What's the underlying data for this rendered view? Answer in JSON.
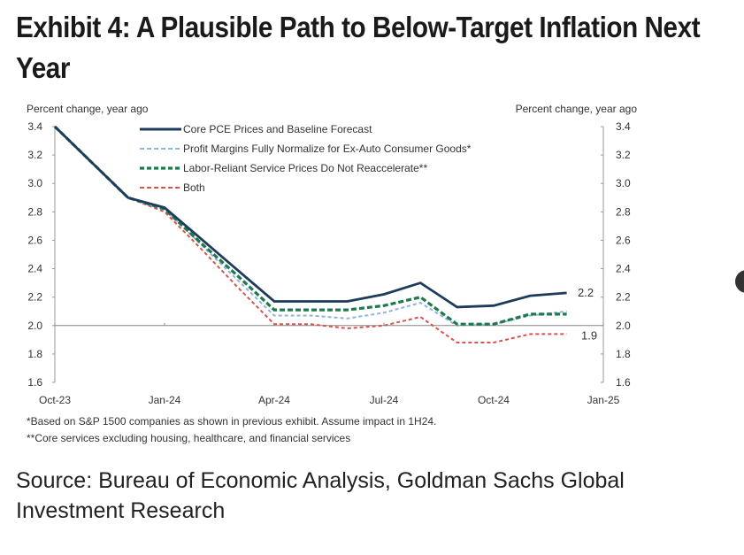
{
  "title": "Exhibit 4: A Plausible Path to Below-Target Inflation Next Year",
  "source": "Source: Bureau of Economic Analysis, Goldman Sachs Global Investment Research",
  "chart_data": {
    "type": "line",
    "title": "",
    "ylabel_left": "Percent change, year ago",
    "ylabel_right": "Percent change, year ago",
    "ylim": [
      1.6,
      3.4
    ],
    "yticks": [
      "3.4",
      "3.2",
      "3.0",
      "2.8",
      "2.6",
      "2.4",
      "2.2",
      "2.0",
      "1.8",
      "1.6"
    ],
    "xticks": [
      "Oct-23",
      "Jan-24",
      "Apr-24",
      "Jul-24",
      "Oct-24",
      "Jan-25"
    ],
    "x": [
      "Oct-23",
      "Nov-23",
      "Dec-23",
      "Jan-24",
      "Feb-24",
      "Mar-24",
      "Apr-24",
      "May-24",
      "Jun-24",
      "Jul-24",
      "Aug-24",
      "Sep-24",
      "Oct-24",
      "Nov-24",
      "Dec-24"
    ],
    "series": [
      {
        "name": "Core PCE Prices and Baseline Forecast",
        "color": "#1f3b5c",
        "style": "solid",
        "values": [
          3.4,
          3.15,
          2.9,
          2.83,
          2.61,
          2.39,
          2.17,
          2.17,
          2.17,
          2.22,
          2.3,
          2.13,
          2.14,
          2.21,
          2.23
        ]
      },
      {
        "name": "Profit Margins Fully Normalize for Ex-Auto Consumer Goods*",
        "color": "#8fb3dd",
        "style": "dashed",
        "values": [
          3.4,
          3.15,
          2.9,
          2.82,
          2.57,
          2.32,
          2.07,
          2.07,
          2.05,
          2.09,
          2.16,
          2.0,
          2.01,
          2.07,
          2.1
        ]
      },
      {
        "name": "Labor-Reliant Service Prices Do Not Reaccelerate**",
        "color": "#1e7a4a",
        "style": "dashed",
        "values": [
          3.4,
          3.15,
          2.9,
          2.82,
          2.58,
          2.35,
          2.11,
          2.11,
          2.11,
          2.14,
          2.2,
          2.01,
          2.01,
          2.08,
          2.08
        ]
      },
      {
        "name": "Both",
        "color": "#d9534f",
        "style": "dashed",
        "values": [
          3.4,
          3.15,
          2.9,
          2.8,
          2.54,
          2.27,
          2.01,
          2.01,
          1.98,
          2.0,
          2.06,
          1.88,
          1.88,
          1.94,
          1.94
        ]
      }
    ],
    "annotations": [
      "2.2",
      "1.9"
    ],
    "reference_line": 2.0,
    "footnotes": [
      "*Based on S&P 1500 companies as shown in previous  exhibit. Assume impact in 1H24.",
      "**Core services excluding housing, healthcare, and financial services"
    ],
    "legend": "top-left"
  }
}
